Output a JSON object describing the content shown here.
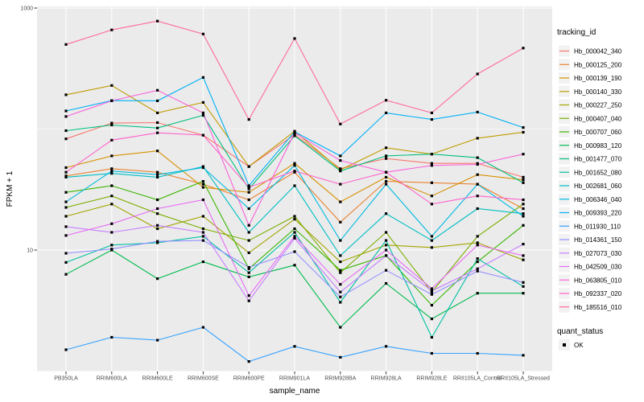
{
  "figure": {
    "y_axis": {
      "label": "FPKM + 1",
      "scale": "log10",
      "ticks": [
        "1000",
        "10"
      ]
    },
    "x_axis": {
      "label": "sample_name"
    },
    "legend": {
      "tracking_title": "tracking_id",
      "quant_title": "quant_status",
      "quant_items": [
        {
          "label": "OK"
        }
      ]
    }
  },
  "colors": {
    "panel_bg": "#EBEBEB",
    "grid_major": "#FFFFFF",
    "grid_minor": "#FFFFFF",
    "tick_mark": "#333333",
    "tick_text": "#4D4D4D",
    "point": "#000000",
    "legend_key_bg": "#F2F2F2"
  },
  "chart_data": {
    "type": "line",
    "title": "",
    "xlabel": "sample_name",
    "ylabel": "FPKM + 1",
    "y_scale": "log10",
    "ylim": [
      1,
      1000
    ],
    "y_breaks": [
      10,
      1000
    ],
    "y_minor_breaks": [
      1,
      100
    ],
    "grid": true,
    "legend_position": "right",
    "point_shape": "small black square (quant_status = OK)",
    "categories": [
      "PB350LA",
      "RRIM600LA",
      "RRIM600LE",
      "RRIM600SE",
      "RRIM600PE",
      "RRIM901LA",
      "RRIM928BA",
      "RRIM928LA",
      "RRIM928LE",
      "RRII105LA_Control",
      "RRII105LA_Stressed"
    ],
    "series": [
      {
        "name": "Hb_000042_340",
        "color": "#F8766D",
        "values": [
          83,
          112,
          113,
          89,
          49,
          90,
          47,
          57,
          52,
          52,
          40
        ]
      },
      {
        "name": "Hb_000125_200",
        "color": "#EA8331",
        "values": [
          41,
          47,
          44,
          35,
          26,
          44,
          17,
          37,
          36,
          35,
          22
        ]
      },
      {
        "name": "Hb_000139_190",
        "color": "#D89000",
        "values": [
          48,
          60,
          66,
          33,
          30,
          52,
          25,
          40,
          28,
          42,
          38
        ]
      },
      {
        "name": "Hb_000140_330",
        "color": "#C09B00",
        "values": [
          192,
          229,
          136,
          166,
          49,
          96,
          46,
          70,
          62,
          84,
          94
        ]
      },
      {
        "name": "Hb_000227_250",
        "color": "#A3A500",
        "values": [
          19,
          24,
          15,
          19,
          9.5,
          18,
          8,
          11,
          10.5,
          11.5,
          8.3
        ]
      },
      {
        "name": "Hb_000407_040",
        "color": "#7CAE00",
        "values": [
          22.5,
          28,
          20,
          15,
          12,
          19,
          6.5,
          14,
          4.5,
          13,
          24
        ]
      },
      {
        "name": "Hb_000707_060",
        "color": "#39B600",
        "values": [
          30,
          34,
          26,
          37,
          7,
          15,
          6.8,
          9,
          3.5,
          8,
          16
        ]
      },
      {
        "name": "Hb_000983_120",
        "color": "#00BB4E",
        "values": [
          6.3,
          10,
          5.8,
          8,
          6,
          7.5,
          2.3,
          5.3,
          2.7,
          4.4,
          4.4
        ]
      },
      {
        "name": "Hb_001477_070",
        "color": "#00BF7D",
        "values": [
          97,
          108,
          102,
          130,
          32,
          88,
          45,
          60,
          62,
          58,
          36
        ]
      },
      {
        "name": "Hb_001652_080",
        "color": "#00C1A3",
        "values": [
          7.9,
          11,
          11.5,
          13,
          6.5,
          14,
          3.7,
          12,
          1.9,
          8.5,
          5
        ]
      },
      {
        "name": "Hb_002681_060",
        "color": "#00BFC4",
        "values": [
          40,
          43,
          40,
          49,
          14,
          34,
          9,
          20,
          12,
          22,
          20
        ]
      },
      {
        "name": "Hb_006346_040",
        "color": "#00BAE0",
        "values": [
          25,
          45,
          42,
          48,
          22,
          50,
          12,
          35,
          13,
          35,
          19
        ]
      },
      {
        "name": "Hb_009393_220",
        "color": "#00B0F6",
        "values": [
          141,
          172,
          171,
          267,
          34,
          95,
          60,
          136,
          120,
          138,
          103
        ]
      },
      {
        "name": "Hb_011930_110",
        "color": "#35A2FF",
        "values": [
          1.5,
          1.9,
          1.8,
          2.3,
          1.2,
          1.6,
          1.3,
          1.6,
          1.4,
          1.4,
          1.35
        ]
      },
      {
        "name": "Hb_014361_150",
        "color": "#9590FF",
        "values": [
          9.4,
          10.2,
          11.8,
          12,
          7.2,
          9.7,
          4.1,
          6.8,
          4.3,
          6.7,
          5.4
        ]
      },
      {
        "name": "Hb_027073_030",
        "color": "#C77CFF",
        "values": [
          15.6,
          14,
          16,
          14,
          3.8,
          12.5,
          4.5,
          9,
          4.6,
          7,
          11.2
        ]
      },
      {
        "name": "Hb_042509_030",
        "color": "#E76BF3",
        "values": [
          13.2,
          16.5,
          22,
          26,
          4.2,
          13,
          5.2,
          10,
          4.8,
          11,
          9
        ]
      },
      {
        "name": "Hb_063805_010",
        "color": "#FA62DB",
        "values": [
          127,
          171,
          209,
          136,
          16,
          93,
          55,
          44,
          50,
          51,
          62
        ]
      },
      {
        "name": "Hb_092337_020",
        "color": "#FF61CC",
        "values": [
          44,
          81,
          93,
          89,
          33,
          45,
          35,
          44,
          24,
          28,
          26
        ]
      },
      {
        "name": "Hb_185516_010",
        "color": "#FF6A98",
        "values": [
          500,
          660,
          780,
          610,
          120,
          560,
          110,
          173,
          136,
          285,
          467
        ]
      }
    ]
  }
}
